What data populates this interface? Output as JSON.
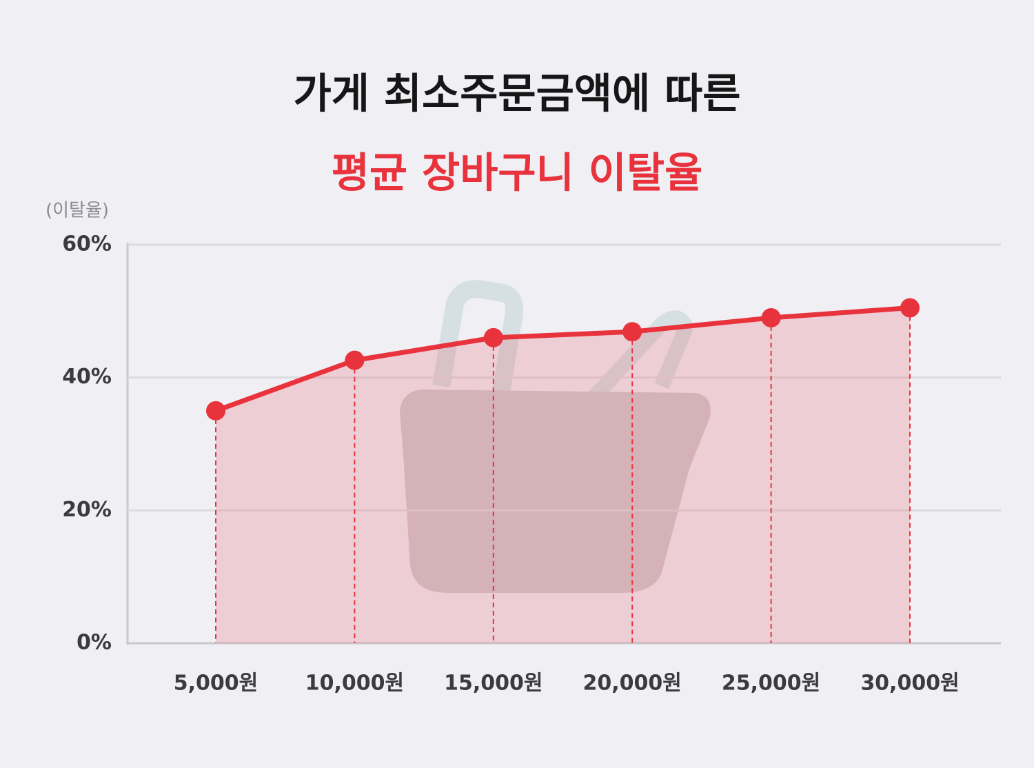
{
  "chart_data": {
    "type": "line",
    "title": "가게 최소주문금액에 따른",
    "subtitle": "평균 장바구니 이탈율",
    "y_label": "(이탈율)",
    "categories": [
      "5,000원",
      "10,000원",
      "15,000원",
      "20,000원",
      "25,000원",
      "30,000원"
    ],
    "values": [
      35,
      42.6,
      46,
      46.9,
      49,
      50.5
    ],
    "color": "#e8323c",
    "area": true,
    "grid": true,
    "ylim": [
      0,
      60
    ],
    "yticks": [
      {
        "value": 0,
        "label": "0%"
      },
      {
        "value": 20,
        "label": "20%"
      },
      {
        "value": 40,
        "label": "40%"
      },
      {
        "value": 60,
        "label": "60%"
      }
    ]
  }
}
